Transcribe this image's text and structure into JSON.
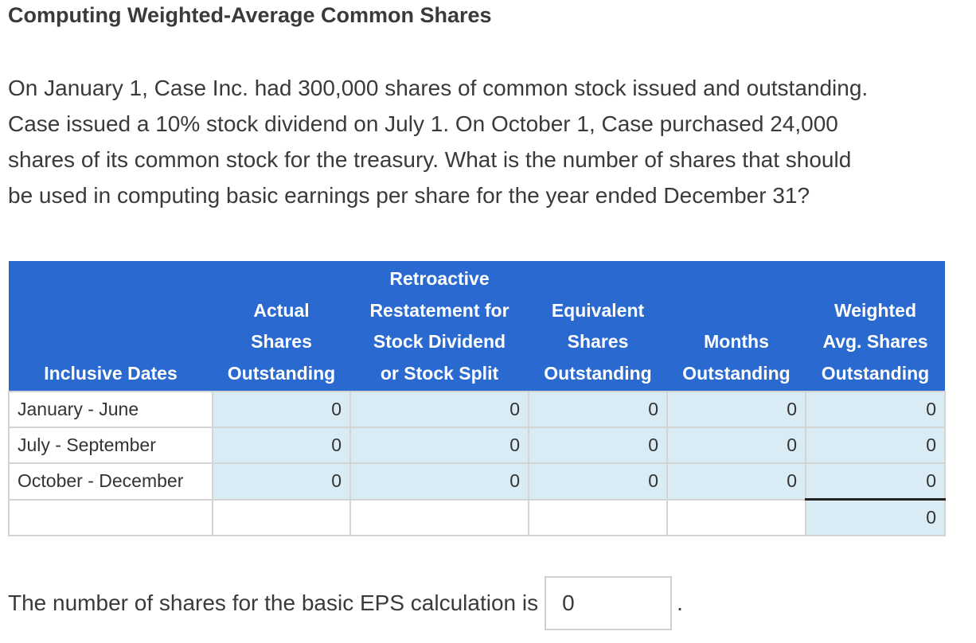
{
  "title": "Computing Weighted-Average Common Shares",
  "problem": {
    "lines": [
      "On January 1, Case Inc. had 300,000 shares of common stock issued and outstanding.",
      "Case issued a 10% stock dividend on July 1. On October 1, Case purchased 24,000",
      "shares of its common stock for the treasury. What is the number of shares that should",
      "be used in computing basic earnings per share for the year ended December 31?"
    ]
  },
  "table": {
    "headers": [
      {
        "lines": [
          "",
          "",
          "",
          "Inclusive Dates"
        ]
      },
      {
        "lines": [
          "",
          "Actual",
          "Shares",
          "Outstanding"
        ]
      },
      {
        "lines": [
          "Retroactive",
          "Restatement for",
          "Stock Dividend",
          "or Stock Split"
        ]
      },
      {
        "lines": [
          "",
          "Equivalent",
          "Shares",
          "Outstanding"
        ]
      },
      {
        "lines": [
          "",
          "",
          "Months",
          "Outstanding"
        ]
      },
      {
        "lines": [
          "",
          "Weighted",
          "Avg. Shares",
          "Outstanding"
        ]
      }
    ],
    "rows": [
      {
        "date": "January - June",
        "values": [
          "0",
          "0",
          "0",
          "0",
          "0"
        ]
      },
      {
        "date": "July - September",
        "values": [
          "0",
          "0",
          "0",
          "0",
          "0"
        ]
      },
      {
        "date": "October - December",
        "values": [
          "0",
          "0",
          "0",
          "0",
          "0"
        ]
      }
    ],
    "total": "0"
  },
  "answer": {
    "label": "The number of shares for the basic EPS calculation is",
    "value": "0",
    "suffix": "."
  },
  "colors": {
    "header_bg": "#2a6ad0",
    "input_cell_bg": "#d9ebf4"
  }
}
